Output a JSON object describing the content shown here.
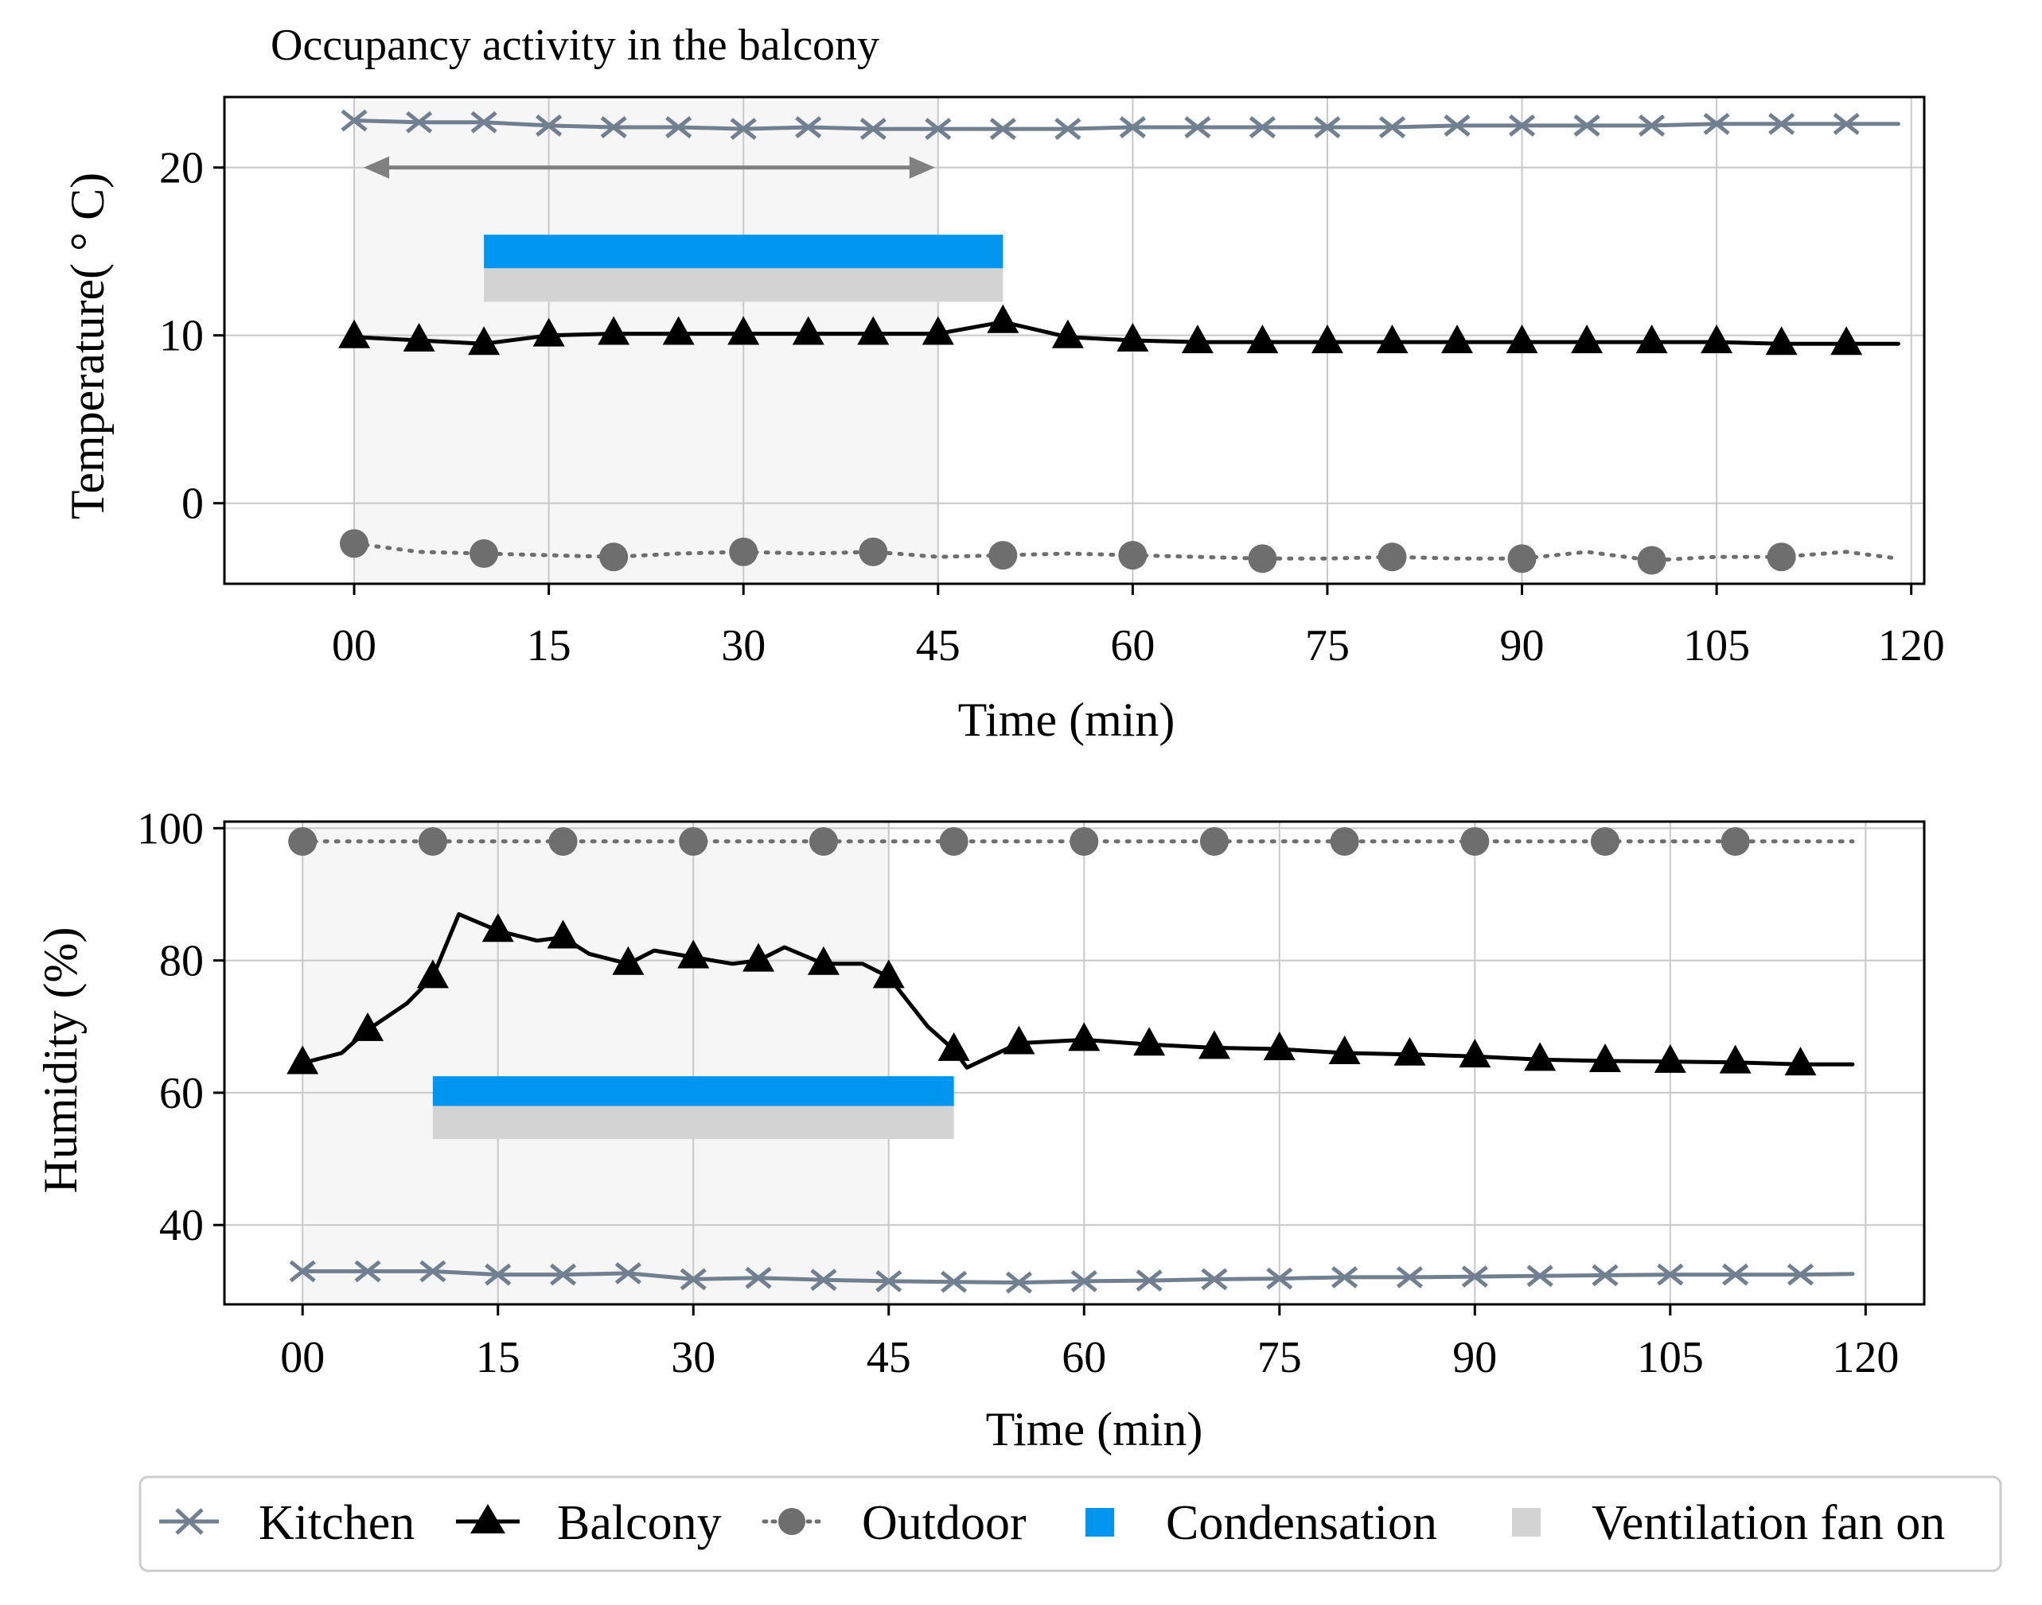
{
  "colors": {
    "kitchen": "#708090",
    "balcony": "#000000",
    "outdoor": "#6e6e6e",
    "condensation": "#0096f0",
    "ventilation": "#d3d3d3",
    "occupancy_shade": "#f6f6f6",
    "arrow": "#808080"
  },
  "legend": {
    "kitchen": "Kitchen",
    "balcony": "Balcony",
    "outdoor": "Outdoor",
    "condensation": "Condensation",
    "ventilation": "Ventilation fan on"
  },
  "chart_data": [
    {
      "type": "line",
      "annotation": "Occupancy activity in the balcony",
      "xlabel": "Time (min)",
      "ylabel": "Temperature( ° C)",
      "xlim": [
        -10,
        121
      ],
      "ylim": [
        -4.8,
        24.2
      ],
      "xticks": [
        0,
        15,
        30,
        45,
        60,
        75,
        90,
        105,
        120
      ],
      "xticklabels": [
        "00",
        "15",
        "30",
        "45",
        "60",
        "75",
        "90",
        "105",
        "120"
      ],
      "yticks": [
        0,
        10,
        20
      ],
      "yticklabels": [
        "0",
        "10",
        "20"
      ],
      "grid": true,
      "occupancy": {
        "start": 0,
        "end": 45
      },
      "arrow": {
        "x_start": 0,
        "x_end": 45,
        "y": 20
      },
      "condensation": {
        "start": 10,
        "end": 50,
        "y_low": 14.0,
        "y_high": 16.0
      },
      "ventilation": {
        "start": 10,
        "end": 50,
        "y_low": 12.0,
        "y_high": 14.0
      },
      "series": [
        {
          "name": "Kitchen",
          "x": [
            0,
            5,
            10,
            15,
            20,
            25,
            30,
            35,
            40,
            45,
            50,
            55,
            60,
            65,
            70,
            75,
            80,
            85,
            90,
            95,
            100,
            105,
            110,
            115,
            119
          ],
          "y": [
            22.8,
            22.7,
            22.7,
            22.5,
            22.4,
            22.4,
            22.3,
            22.4,
            22.3,
            22.3,
            22.3,
            22.3,
            22.4,
            22.4,
            22.4,
            22.4,
            22.4,
            22.5,
            22.5,
            22.5,
            22.5,
            22.6,
            22.6,
            22.6,
            22.6
          ]
        },
        {
          "name": "Balcony",
          "x": [
            0,
            5,
            10,
            15,
            20,
            25,
            30,
            35,
            40,
            45,
            50,
            55,
            60,
            65,
            70,
            75,
            80,
            85,
            90,
            95,
            100,
            105,
            110,
            115,
            119
          ],
          "y": [
            9.9,
            9.7,
            9.5,
            10.0,
            10.1,
            10.1,
            10.1,
            10.1,
            10.1,
            10.1,
            10.8,
            9.9,
            9.7,
            9.6,
            9.6,
            9.6,
            9.6,
            9.6,
            9.6,
            9.6,
            9.6,
            9.6,
            9.5,
            9.5,
            9.5
          ]
        },
        {
          "name": "Outdoor",
          "x": [
            0,
            5,
            10,
            15,
            20,
            25,
            30,
            35,
            40,
            45,
            50,
            55,
            60,
            65,
            70,
            75,
            80,
            85,
            90,
            95,
            100,
            105,
            110,
            115,
            119
          ],
          "y": [
            -2.4,
            -2.9,
            -3.0,
            -3.1,
            -3.2,
            -3.0,
            -2.9,
            -3.0,
            -2.9,
            -3.2,
            -3.1,
            -3.0,
            -3.1,
            -3.2,
            -3.3,
            -3.3,
            -3.2,
            -3.3,
            -3.3,
            -2.9,
            -3.4,
            -3.2,
            -3.2,
            -2.9,
            -3.3
          ]
        }
      ]
    },
    {
      "type": "line",
      "xlabel": "Time (min)",
      "ylabel": "Humidity (%)",
      "xlim": [
        -6,
        124.5
      ],
      "ylim": [
        28,
        101
      ],
      "xticks": [
        0,
        15,
        30,
        45,
        60,
        75,
        90,
        105,
        120
      ],
      "xticklabels": [
        "00",
        "15",
        "30",
        "45",
        "60",
        "75",
        "90",
        "105",
        "120"
      ],
      "yticks": [
        40,
        60,
        80,
        100
      ],
      "yticklabels": [
        "40",
        "60",
        "80",
        "100"
      ],
      "grid": true,
      "occupancy": {
        "start": 0,
        "end": 45
      },
      "condensation": {
        "start": 10,
        "end": 50,
        "y_low": 58.0,
        "y_high": 62.5
      },
      "ventilation": {
        "start": 10,
        "end": 50,
        "y_low": 53.0,
        "y_high": 58.0
      },
      "series": [
        {
          "name": "Kitchen",
          "x": [
            0,
            5,
            10,
            15,
            20,
            25,
            30,
            35,
            40,
            45,
            50,
            55,
            60,
            65,
            70,
            75,
            80,
            85,
            90,
            95,
            100,
            105,
            110,
            115,
            119
          ],
          "y": [
            33.0,
            33.0,
            33.0,
            32.5,
            32.5,
            32.7,
            31.8,
            32.0,
            31.7,
            31.5,
            31.4,
            31.3,
            31.5,
            31.6,
            31.8,
            31.9,
            32.1,
            32.1,
            32.2,
            32.3,
            32.4,
            32.5,
            32.5,
            32.5,
            32.6
          ]
        },
        {
          "name": "Balcony",
          "x": [
            0,
            3,
            5,
            8,
            10,
            12,
            15,
            18,
            20,
            22,
            25,
            27,
            30,
            33,
            35,
            37,
            40,
            43,
            45,
            48,
            50,
            51,
            55,
            60,
            65,
            70,
            75,
            80,
            85,
            90,
            95,
            100,
            105,
            110,
            115,
            119
          ],
          "y": [
            64.5,
            66.0,
            69.5,
            73.5,
            77.5,
            87.0,
            84.5,
            83.0,
            83.5,
            81.0,
            79.5,
            81.5,
            80.5,
            79.5,
            80.0,
            82.0,
            79.5,
            79.5,
            77.5,
            70.0,
            66.5,
            63.8,
            67.5,
            68.0,
            67.3,
            66.8,
            66.6,
            66.0,
            65.8,
            65.5,
            65.0,
            64.8,
            64.7,
            64.6,
            64.3,
            64.3
          ]
        },
        {
          "name": "Outdoor",
          "x": [
            0,
            10,
            20,
            30,
            40,
            50,
            60,
            70,
            80,
            90,
            100,
            110,
            119
          ],
          "y": [
            98.0,
            98.0,
            98.0,
            98.0,
            98.0,
            98.0,
            98.0,
            98.0,
            98.0,
            98.0,
            98.0,
            98.0,
            98.0
          ]
        }
      ]
    }
  ]
}
